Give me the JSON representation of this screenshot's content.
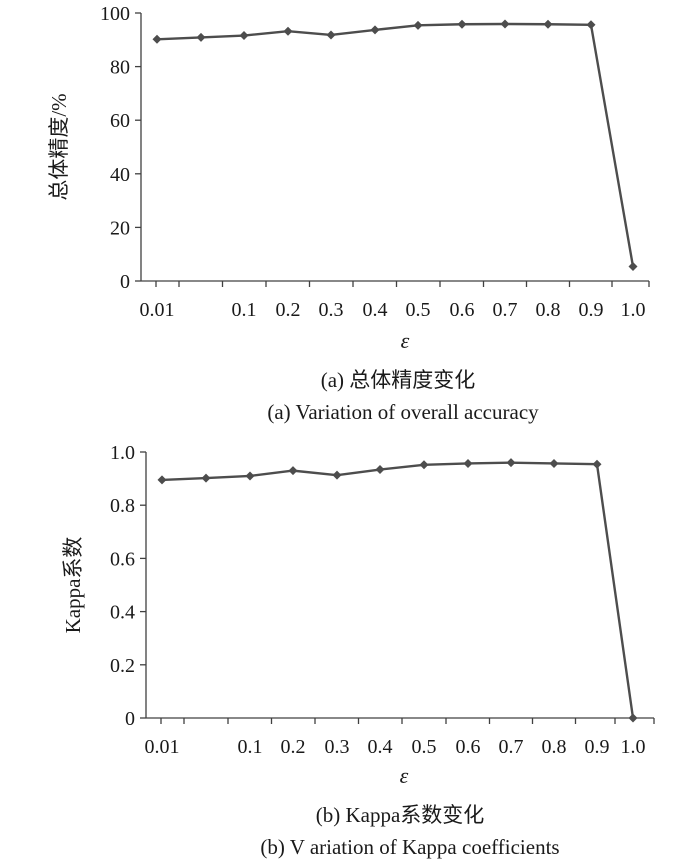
{
  "chart_data": [
    {
      "type": "line",
      "x_label": "ε",
      "ylabel": "总体精度/%",
      "caption_cn": "(a) 总体精度变化",
      "caption_en": "(a) Variation of overall accuracy",
      "ylim": [
        0,
        100
      ],
      "y_ticks": [
        "0",
        "20",
        "40",
        "60",
        "80",
        "100"
      ],
      "x_tick_labels": [
        "0.01",
        "",
        "0.1",
        "0.2",
        "0.3",
        "0.4",
        "0.5",
        "0.6",
        "0.7",
        "0.8",
        "0.9",
        "1.0"
      ],
      "values": [
        90.2,
        90.9,
        91.6,
        93.2,
        91.8,
        93.7,
        95.4,
        95.8,
        95.9,
        95.8,
        95.6,
        5.4
      ],
      "grid": false,
      "legend": "none"
    },
    {
      "type": "line",
      "x_label": "ε",
      "ylabel": "Kappa系数",
      "caption_cn": "(b) Kappa系数变化",
      "caption_en": "(b) V ariation of Kappa coefficients",
      "ylim": [
        0,
        1.0
      ],
      "y_ticks": [
        "0",
        "0.2",
        "0.4",
        "0.6",
        "0.8",
        "1.0"
      ],
      "x_tick_labels": [
        "0.01",
        "",
        "0.1",
        "0.2",
        "0.3",
        "0.4",
        "0.5",
        "0.6",
        "0.7",
        "0.8",
        "0.9",
        "1.0"
      ],
      "values": [
        0.895,
        0.902,
        0.91,
        0.93,
        0.913,
        0.934,
        0.952,
        0.957,
        0.96,
        0.957,
        0.954,
        0.0
      ],
      "grid": false,
      "legend": "none"
    }
  ],
  "colors": {
    "series": "#4d4d4d",
    "axis": "#404040",
    "text": "#1a1a1a"
  }
}
